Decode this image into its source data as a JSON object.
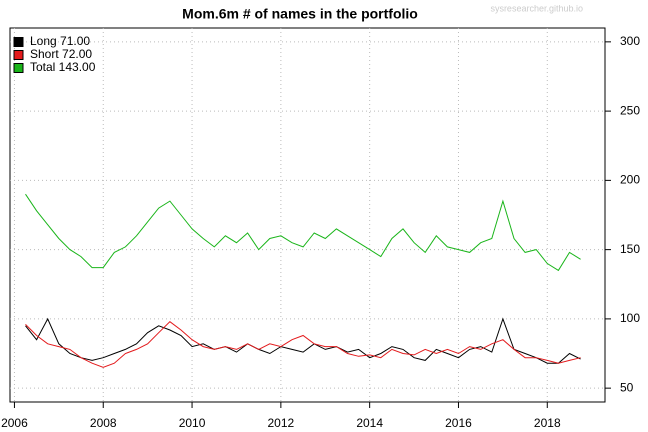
{
  "chart_data": {
    "type": "line",
    "title": "Mom.6m # of names in the portfolio",
    "watermark": "sysresearcher.github.io",
    "x": [
      2006.25,
      2006.5,
      2006.75,
      2007,
      2007.25,
      2007.5,
      2007.75,
      2008,
      2008.25,
      2008.5,
      2008.75,
      2009,
      2009.25,
      2009.5,
      2009.75,
      2010,
      2010.25,
      2010.5,
      2010.75,
      2011,
      2011.25,
      2011.5,
      2011.75,
      2012,
      2012.25,
      2012.5,
      2012.75,
      2013,
      2013.25,
      2013.5,
      2013.75,
      2014,
      2014.25,
      2014.5,
      2014.75,
      2015,
      2015.25,
      2015.5,
      2015.75,
      2016,
      2016.25,
      2016.5,
      2016.75,
      2017,
      2017.25,
      2017.5,
      2017.75,
      2018,
      2018.25,
      2018.5,
      2018.75
    ],
    "series": [
      {
        "name": "Long  71.00",
        "color": "#000000",
        "values": [
          95,
          85,
          100,
          82,
          75,
          72,
          70,
          72,
          75,
          78,
          82,
          90,
          95,
          92,
          88,
          80,
          82,
          78,
          80,
          76,
          82,
          78,
          75,
          80,
          78,
          76,
          82,
          78,
          80,
          76,
          78,
          72,
          75,
          80,
          78,
          72,
          70,
          78,
          75,
          72,
          78,
          80,
          76,
          100,
          78,
          75,
          72,
          68,
          68,
          75,
          71
        ]
      },
      {
        "name": "Short  72.00",
        "color": "#e31a1c",
        "values": [
          96,
          88,
          82,
          80,
          78,
          72,
          68,
          65,
          68,
          75,
          78,
          82,
          90,
          98,
          92,
          85,
          80,
          78,
          80,
          78,
          82,
          78,
          82,
          80,
          85,
          88,
          82,
          80,
          80,
          75,
          73,
          74,
          72,
          78,
          75,
          74,
          78,
          75,
          78,
          75,
          80,
          78,
          82,
          85,
          78,
          72,
          72,
          70,
          68,
          70,
          72
        ]
      },
      {
        "name": "Total 143.00",
        "color": "#1ab51a",
        "values": [
          190,
          178,
          168,
          158,
          150,
          145,
          137,
          137,
          148,
          152,
          160,
          170,
          180,
          185,
          175,
          165,
          158,
          152,
          160,
          155,
          162,
          150,
          158,
          160,
          155,
          152,
          162,
          158,
          165,
          160,
          155,
          150,
          145,
          158,
          165,
          155,
          148,
          160,
          152,
          150,
          148,
          155,
          158,
          185,
          158,
          148,
          150,
          140,
          135,
          148,
          143
        ]
      }
    ],
    "xlim": [
      2005.9,
      2019.3
    ],
    "xticks": [
      2006,
      2008,
      2010,
      2012,
      2014,
      2016,
      2018
    ],
    "ylim": [
      40,
      310
    ],
    "yticks": [
      50,
      100,
      150,
      200,
      250,
      300
    ],
    "grid": true,
    "legend": "topleft"
  }
}
